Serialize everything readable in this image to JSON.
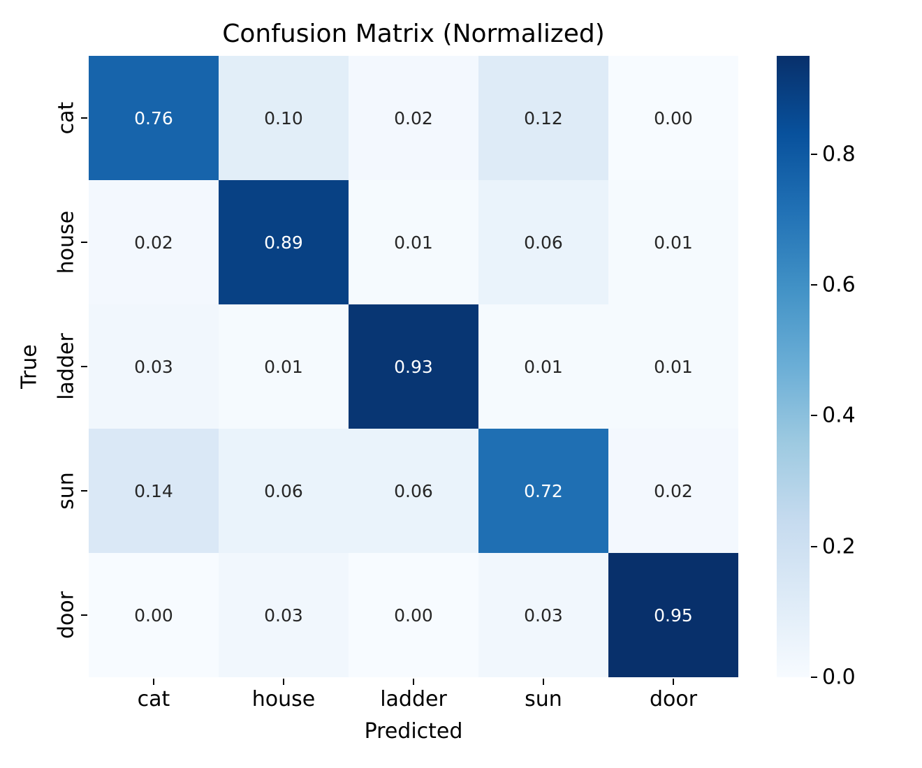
{
  "chart_data": {
    "type": "heatmap",
    "title": "Confusion Matrix (Normalized)",
    "xlabel": "Predicted",
    "ylabel": "True",
    "x_categories": [
      "cat",
      "house",
      "ladder",
      "sun",
      "door"
    ],
    "y_categories": [
      "cat",
      "house",
      "ladder",
      "sun",
      "door"
    ],
    "matrix": [
      [
        0.76,
        0.1,
        0.02,
        0.12,
        0.0
      ],
      [
        0.02,
        0.89,
        0.01,
        0.06,
        0.01
      ],
      [
        0.03,
        0.01,
        0.93,
        0.01,
        0.01
      ],
      [
        0.14,
        0.06,
        0.06,
        0.72,
        0.02
      ],
      [
        0.0,
        0.03,
        0.0,
        0.03,
        0.95
      ]
    ],
    "value_decimals": 2,
    "vmin": 0.0,
    "vmax": 0.95,
    "colormap": "Blues",
    "colorbar_ticks": [
      0.0,
      0.2,
      0.4,
      0.6,
      0.8
    ],
    "colorbar_tick_decimals": 1,
    "legend_position": "right",
    "grid": false,
    "colors": {
      "annotation_light": "#ffffff",
      "annotation_dark": "#262626",
      "axis_text": "#000000",
      "cmap_min": "#f7fbff",
      "cmap_max": "#08306b"
    }
  }
}
